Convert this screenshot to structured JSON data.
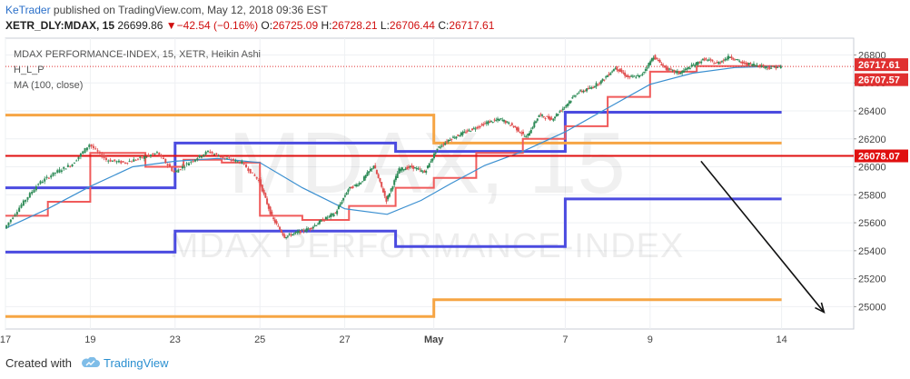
{
  "header": {
    "author": "KeTrader",
    "published_text": " published on TradingView.com, May 12, 2018 09:36 EST",
    "symbol": "XETR_DLY:MDAX, 15",
    "last": "26699.86",
    "change_arrow": "▼",
    "change": "−42.54 (−0.16%)",
    "o_label": "O:",
    "o_value": "26725.09",
    "h_label": "H:",
    "h_value": "26728.21",
    "l_label": "L:",
    "l_value": "26706.44",
    "c_label": "C:",
    "c_value": "26717.61"
  },
  "legend": {
    "title": "MDAX PERFORMANCE-INDEX, 15, XETR, Heikin Ashi",
    "indicator1": "H_L_P",
    "indicator2": "MA (100, close)"
  },
  "watermark": {
    "big": "MDAX, 15",
    "sub": "MDAX PERFORMANCE-INDEX"
  },
  "footer": {
    "created_with": "Created with",
    "brand": "TradingView"
  },
  "colors": {
    "blue_levels": "#4b4be0",
    "orange_levels": "#f6a544",
    "red_steps": "#f05a5a",
    "ma": "#3a8fd0",
    "candle_up": "#2e8b57",
    "candle_down": "#e05050",
    "hline_red": "#e01010",
    "price_tag": "#e03030",
    "arrow": "#111111"
  },
  "chart_data": {
    "type": "candlestick",
    "title": "MDAX PERFORMANCE-INDEX, 15, XETR, Heikin Ashi",
    "ylim": [
      24840,
      26920
    ],
    "y_ticks": [
      25000,
      25200,
      25400,
      25600,
      25800,
      26000,
      26200,
      26400,
      26600,
      26800
    ],
    "x_ticks": [
      {
        "label": "17",
        "pos": 0.0
      },
      {
        "label": "19",
        "pos": 2.0
      },
      {
        "label": "23",
        "pos": 4.0
      },
      {
        "label": "25",
        "pos": 6.0
      },
      {
        "label": "27",
        "pos": 8.0
      },
      {
        "label": "May",
        "pos": 10.1
      },
      {
        "label": "7",
        "pos": 13.2
      },
      {
        "label": "9",
        "pos": 15.2
      },
      {
        "label": "14",
        "pos": 18.3
      }
    ],
    "xlim": [
      0,
      20
    ],
    "price_tags": [
      {
        "value": 26717.61,
        "label": "26717.61",
        "color": "#e03030"
      },
      {
        "value": 26707.57,
        "label": "26707.57",
        "color": "#e03030"
      },
      {
        "value": 26078.07,
        "label": "26078.07",
        "color": "#e01010"
      }
    ],
    "horizontal_line": {
      "value": 26078.07
    },
    "close_line": {
      "value": 26717.61
    },
    "series": [
      {
        "name": "H_L_P resistance",
        "points": [
          [
            0,
            25850
          ],
          [
            4.0,
            25850
          ],
          [
            4.0,
            26170
          ],
          [
            9.2,
            26170
          ],
          [
            9.2,
            26110
          ],
          [
            13.2,
            26110
          ],
          [
            13.2,
            26390
          ],
          [
            18.3,
            26390
          ]
        ]
      },
      {
        "name": "H_L_P support",
        "points": [
          [
            0,
            25390
          ],
          [
            4.0,
            25390
          ],
          [
            4.0,
            25540
          ],
          [
            9.2,
            25540
          ],
          [
            9.2,
            25430
          ],
          [
            13.2,
            25430
          ],
          [
            13.2,
            25770
          ],
          [
            18.3,
            25770
          ]
        ]
      },
      {
        "name": "H_L_P pivot high",
        "points": [
          [
            0,
            26370
          ],
          [
            10.1,
            26370
          ],
          [
            10.1,
            26170
          ],
          [
            18.3,
            26170
          ]
        ]
      },
      {
        "name": "H_L_P pivot low",
        "points": [
          [
            0,
            24930
          ],
          [
            10.1,
            24930
          ],
          [
            10.1,
            25050
          ],
          [
            18.3,
            25050
          ]
        ]
      },
      {
        "name": "H_L_P steps",
        "points": [
          [
            0,
            25650
          ],
          [
            1.0,
            25650
          ],
          [
            1.0,
            25750
          ],
          [
            2.0,
            25750
          ],
          [
            2.0,
            26100
          ],
          [
            3.1,
            26100
          ],
          [
            3.1,
            26100
          ],
          [
            3.3,
            26100
          ],
          [
            3.3,
            26000
          ],
          [
            4.2,
            26000
          ],
          [
            4.2,
            26050
          ],
          [
            5.1,
            26050
          ],
          [
            5.1,
            26030
          ],
          [
            6.0,
            26030
          ],
          [
            6.0,
            25650
          ],
          [
            7.0,
            25650
          ],
          [
            7.0,
            25620
          ],
          [
            8.1,
            25620
          ],
          [
            8.1,
            25720
          ],
          [
            9.2,
            25720
          ],
          [
            9.2,
            25850
          ],
          [
            10.1,
            25850
          ],
          [
            10.1,
            25920
          ],
          [
            11.1,
            25920
          ],
          [
            11.1,
            26100
          ],
          [
            12.2,
            26100
          ],
          [
            12.2,
            26200
          ],
          [
            13.2,
            26200
          ],
          [
            13.2,
            26290
          ],
          [
            14.2,
            26290
          ],
          [
            14.2,
            26500
          ],
          [
            15.2,
            26500
          ],
          [
            15.2,
            26680
          ],
          [
            16.3,
            26680
          ],
          [
            16.3,
            26720
          ],
          [
            18.3,
            26720
          ]
        ]
      },
      {
        "name": "MA (100, close)",
        "points": [
          [
            0,
            25560
          ],
          [
            1.0,
            25700
          ],
          [
            2.0,
            25860
          ],
          [
            3.0,
            26000
          ],
          [
            4.0,
            26040
          ],
          [
            5.0,
            26060
          ],
          [
            6.0,
            26030
          ],
          [
            7.0,
            25850
          ],
          [
            8.0,
            25700
          ],
          [
            9.0,
            25660
          ],
          [
            9.8,
            25760
          ],
          [
            10.5,
            25880
          ],
          [
            11.3,
            26010
          ],
          [
            12.2,
            26110
          ],
          [
            13.2,
            26250
          ],
          [
            14.2,
            26420
          ],
          [
            15.2,
            26590
          ],
          [
            16.2,
            26670
          ],
          [
            17.2,
            26710
          ],
          [
            18.3,
            26720
          ]
        ]
      },
      {
        "name": "Price (Heikin Ashi)",
        "points": [
          [
            0,
            25560
          ],
          [
            0.4,
            25730
          ],
          [
            0.8,
            25880
          ],
          [
            1.2,
            25960
          ],
          [
            1.6,
            26020
          ],
          [
            2.0,
            26160
          ],
          [
            2.4,
            26050
          ],
          [
            2.8,
            26030
          ],
          [
            3.2,
            26060
          ],
          [
            3.6,
            26100
          ],
          [
            4.0,
            25960
          ],
          [
            4.4,
            26040
          ],
          [
            4.8,
            26110
          ],
          [
            5.2,
            26060
          ],
          [
            5.6,
            26030
          ],
          [
            6.0,
            25900
          ],
          [
            6.3,
            25640
          ],
          [
            6.6,
            25500
          ],
          [
            6.9,
            25530
          ],
          [
            7.2,
            25560
          ],
          [
            7.5,
            25620
          ],
          [
            7.8,
            25670
          ],
          [
            8.1,
            25840
          ],
          [
            8.4,
            25890
          ],
          [
            8.7,
            26010
          ],
          [
            9.0,
            25760
          ],
          [
            9.3,
            25980
          ],
          [
            9.6,
            26000
          ],
          [
            9.9,
            25960
          ],
          [
            10.2,
            26130
          ],
          [
            10.5,
            26200
          ],
          [
            10.8,
            26240
          ],
          [
            11.1,
            26280
          ],
          [
            11.4,
            26320
          ],
          [
            11.7,
            26340
          ],
          [
            12.0,
            26290
          ],
          [
            12.3,
            26210
          ],
          [
            12.6,
            26370
          ],
          [
            12.9,
            26340
          ],
          [
            13.2,
            26430
          ],
          [
            13.5,
            26530
          ],
          [
            13.8,
            26560
          ],
          [
            14.1,
            26620
          ],
          [
            14.4,
            26710
          ],
          [
            14.7,
            26640
          ],
          [
            15.0,
            26650
          ],
          [
            15.3,
            26790
          ],
          [
            15.6,
            26700
          ],
          [
            15.9,
            26670
          ],
          [
            16.2,
            26720
          ],
          [
            16.5,
            26770
          ],
          [
            16.8,
            26740
          ],
          [
            17.1,
            26790
          ],
          [
            17.4,
            26740
          ],
          [
            17.7,
            26730
          ],
          [
            18.0,
            26710
          ],
          [
            18.3,
            26717
          ]
        ]
      }
    ],
    "arrow": {
      "from": [
        16.4,
        26040
      ],
      "to": [
        19.3,
        24960
      ]
    }
  }
}
